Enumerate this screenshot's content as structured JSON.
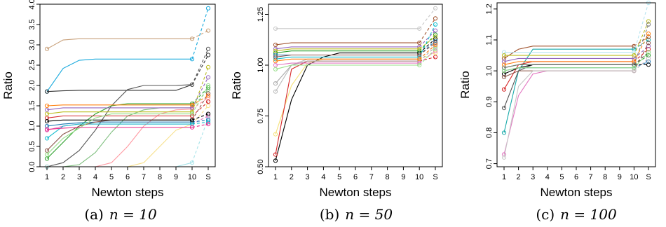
{
  "colors": {
    "axis": "#000000",
    "palette": [
      "#e41a1c",
      "#377eb8",
      "#4daf4a",
      "#984ea3",
      "#ff7f00",
      "#a65628",
      "#f781bf",
      "#999999",
      "#1b9e77",
      "#d95f02",
      "#7570b3",
      "#e7298a",
      "#66a61e",
      "#e6ab02",
      "#17becf",
      "#bcbd22",
      "#8c564b",
      "#000000",
      "#555555",
      "#1f78b4",
      "#33a02c",
      "#fb9a99",
      "#fdbf6f",
      "#cab2d6"
    ]
  },
  "chart_data": [
    {
      "type": "line",
      "caption_prefix": "(a)",
      "caption_math": "n = 10",
      "xlabel": "Newton steps",
      "ylabel": "Ratio",
      "x_ticks": [
        "1",
        "2",
        "3",
        "4",
        "5",
        "6",
        "7",
        "8",
        "9",
        "10",
        "S"
      ],
      "y_ticks": [
        "0.0",
        "0.5",
        "1.0",
        "1.5",
        "2.0",
        "2.5",
        "3.0",
        "3.5",
        "4.0"
      ],
      "ylim": [
        0,
        4
      ],
      "grid": false,
      "legend": "none",
      "series": [
        {
          "color": "#c8a07a",
          "steps": [
            2.9,
            3.12,
            3.15,
            3.15,
            3.15,
            3.15,
            3.15,
            3.15,
            3.15,
            3.15
          ],
          "s": 3.35
        },
        {
          "color": "#17a9dd",
          "steps": [
            1.85,
            2.42,
            2.62,
            2.65,
            2.65,
            2.65,
            2.65,
            2.65,
            2.65,
            2.65
          ],
          "s": 3.9
        },
        {
          "color": "#333333",
          "steps": [
            1.85,
            1.87,
            1.88,
            1.88,
            1.88,
            1.88,
            1.88,
            1.88,
            1.88,
            2.02
          ],
          "s": 2.75
        },
        {
          "color": "#555555",
          "steps": [
            0.0,
            0.1,
            0.4,
            0.9,
            1.5,
            1.9,
            2.0,
            2.0,
            2.0,
            2.02
          ],
          "s": 2.9
        },
        {
          "color": "#2ca02c",
          "steps": [
            0.2,
            0.6,
            1.0,
            1.3,
            1.5,
            1.55,
            1.55,
            1.55,
            1.55,
            1.55
          ],
          "s": 1.95
        },
        {
          "color": "#7fbf7f",
          "steps": [
            0.0,
            0.0,
            0.05,
            0.35,
            0.85,
            1.25,
            1.4,
            1.45,
            1.45,
            1.45
          ],
          "s": 1.9
        },
        {
          "color": "#ff9aa2",
          "steps": [
            0.0,
            0.0,
            0.0,
            0.0,
            0.1,
            0.5,
            1.0,
            1.3,
            1.4,
            1.42
          ],
          "s": 1.7
        },
        {
          "color": "#f7e08a",
          "steps": [
            0.0,
            0.0,
            0.0,
            0.0,
            0.0,
            0.0,
            0.1,
            0.5,
            0.9,
            1.05
          ],
          "s": 1.5
        },
        {
          "color": "#a6e3e9",
          "steps": [
            0.0,
            0.0,
            0.0,
            0.0,
            0.0,
            0.0,
            0.0,
            0.0,
            0.0,
            0.1
          ],
          "s": 1.2
        },
        {
          "color": "#e377c2",
          "steps": [
            0.9,
            1.0,
            1.05,
            1.05,
            1.05,
            1.05,
            1.05,
            1.05,
            1.05,
            1.05
          ],
          "s": 1.25
        },
        {
          "color": "#d62728",
          "steps": [
            1.2,
            1.25,
            1.25,
            1.25,
            1.25,
            1.25,
            1.25,
            1.25,
            1.25,
            1.25
          ],
          "s": 1.6
        },
        {
          "color": "#1f77b4",
          "steps": [
            1.0,
            1.05,
            1.08,
            1.1,
            1.1,
            1.1,
            1.1,
            1.1,
            1.1,
            1.1
          ],
          "s": 1.15
        },
        {
          "color": "#17becf",
          "steps": [
            0.7,
            1.0,
            1.05,
            1.05,
            1.05,
            1.05,
            1.05,
            1.05,
            1.05,
            1.05
          ],
          "s": 1.1
        },
        {
          "color": "#8c564b",
          "steps": [
            0.4,
            0.8,
            1.0,
            1.1,
            1.15,
            1.15,
            1.15,
            1.15,
            1.15,
            1.15
          ],
          "s": 1.8
        },
        {
          "color": "#9467bd",
          "steps": [
            1.4,
            1.45,
            1.45,
            1.45,
            1.45,
            1.45,
            1.45,
            1.45,
            1.45,
            1.45
          ],
          "s": 2.2
        },
        {
          "color": "#bcbd22",
          "steps": [
            1.3,
            1.35,
            1.35,
            1.35,
            1.35,
            1.35,
            1.35,
            1.35,
            1.35,
            1.35
          ],
          "s": 2.45
        },
        {
          "color": "#000000",
          "steps": [
            1.12,
            1.15,
            1.15,
            1.15,
            1.15,
            1.15,
            1.15,
            1.15,
            1.15,
            1.15
          ],
          "s": 1.3
        },
        {
          "color": "#98df8a",
          "steps": [
            0.3,
            0.7,
            0.95,
            1.2,
            1.3,
            1.3,
            1.3,
            1.3,
            1.3,
            1.3
          ],
          "s": 2.0
        },
        {
          "color": "#ff7f0e",
          "steps": [
            1.5,
            1.52,
            1.52,
            1.52,
            1.52,
            1.52,
            1.52,
            1.52,
            1.52,
            1.52
          ],
          "s": 1.75
        },
        {
          "color": "#e7298a",
          "steps": [
            0.92,
            0.95,
            0.97,
            0.97,
            0.97,
            0.97,
            0.97,
            0.97,
            0.97,
            0.97
          ],
          "s": 1.05
        }
      ]
    },
    {
      "type": "line",
      "caption_prefix": "(b)",
      "caption_math": "n = 50",
      "xlabel": "Newton steps",
      "ylabel": "Ratio",
      "x_ticks": [
        "1",
        "2",
        "3",
        "4",
        "5",
        "6",
        "7",
        "8",
        "9",
        "10",
        "S"
      ],
      "y_ticks": [
        "0.50",
        "0.75",
        "1.00",
        "1.25"
      ],
      "ylim": [
        0.5,
        1.3
      ],
      "grid": false,
      "legend": "none",
      "series": [
        {
          "color": "#000000",
          "steps": [
            0.53,
            0.83,
            1.0,
            1.04,
            1.06,
            1.06,
            1.06,
            1.06,
            1.06,
            1.06
          ],
          "s": 1.13
        },
        {
          "color": "#f5e27a",
          "steps": [
            0.66,
            0.9,
            1.01,
            1.03,
            1.03,
            1.03,
            1.03,
            1.03,
            1.03,
            1.03
          ],
          "s": 1.06
        },
        {
          "color": "#d62728",
          "steps": [
            0.56,
            0.98,
            1.02,
            1.02,
            1.02,
            1.02,
            1.02,
            1.02,
            1.02,
            1.02
          ],
          "s": 1.04
        },
        {
          "color": "#c7c7c7",
          "steps": [
            1.18,
            1.18,
            1.18,
            1.18,
            1.18,
            1.18,
            1.18,
            1.18,
            1.18,
            1.18
          ],
          "s": 1.28
        },
        {
          "color": "#bbbbbb",
          "steps": [
            0.87,
            1.0,
            1.03,
            1.03,
            1.03,
            1.03,
            1.03,
            1.03,
            1.03,
            1.03
          ],
          "s": 1.1
        },
        {
          "color": "#aaaaaa",
          "steps": [
            0.91,
            1.0,
            1.02,
            1.02,
            1.02,
            1.02,
            1.02,
            1.02,
            1.02,
            1.02
          ],
          "s": 1.09
        },
        {
          "color": "#a0522d",
          "steps": [
            1.1,
            1.11,
            1.11,
            1.11,
            1.11,
            1.11,
            1.11,
            1.11,
            1.11,
            1.11
          ],
          "s": 1.23
        },
        {
          "color": "#9467bd",
          "steps": [
            1.08,
            1.09,
            1.09,
            1.09,
            1.09,
            1.09,
            1.09,
            1.09,
            1.09,
            1.09
          ],
          "s": 1.17
        },
        {
          "color": "#2ca02c",
          "steps": [
            1.06,
            1.07,
            1.07,
            1.07,
            1.07,
            1.07,
            1.07,
            1.07,
            1.07,
            1.07
          ],
          "s": 1.15
        },
        {
          "color": "#1f77b4",
          "steps": [
            1.05,
            1.05,
            1.05,
            1.05,
            1.05,
            1.05,
            1.05,
            1.05,
            1.05,
            1.05
          ],
          "s": 1.12
        },
        {
          "color": "#17becf",
          "steps": [
            1.03,
            1.04,
            1.04,
            1.04,
            1.04,
            1.04,
            1.04,
            1.04,
            1.04,
            1.04
          ],
          "s": 1.2
        },
        {
          "color": "#ff7f0e",
          "steps": [
            1.02,
            1.03,
            1.03,
            1.03,
            1.03,
            1.03,
            1.03,
            1.03,
            1.03,
            1.03
          ],
          "s": 1.1
        },
        {
          "color": "#e377c2",
          "steps": [
            1.0,
            1.01,
            1.01,
            1.01,
            1.01,
            1.01,
            1.01,
            1.01,
            1.01,
            1.01
          ],
          "s": 1.07
        },
        {
          "color": "#bcbd22",
          "steps": [
            1.07,
            1.08,
            1.08,
            1.08,
            1.08,
            1.08,
            1.08,
            1.08,
            1.08,
            1.08
          ],
          "s": 1.14
        },
        {
          "color": "#8c564b",
          "steps": [
            1.04,
            1.05,
            1.05,
            1.05,
            1.05,
            1.05,
            1.05,
            1.05,
            1.05,
            1.05
          ],
          "s": 1.11
        },
        {
          "color": "#98df8a",
          "steps": [
            0.98,
            1.0,
            1.0,
            1.0,
            1.0,
            1.0,
            1.0,
            1.0,
            1.0,
            1.0
          ],
          "s": 1.08
        }
      ]
    },
    {
      "type": "line",
      "caption_prefix": "(c)",
      "caption_math": "n = 100",
      "xlabel": "Newton steps",
      "ylabel": "Ratio",
      "x_ticks": [
        "1",
        "2",
        "3",
        "4",
        "5",
        "6",
        "7",
        "8",
        "9",
        "10",
        "S"
      ],
      "y_ticks": [
        "0.7",
        "0.8",
        "0.9",
        "1.0",
        "1.1",
        "1.2"
      ],
      "ylim": [
        0.69,
        1.22
      ],
      "grid": false,
      "legend": "none",
      "series": [
        {
          "color": "#e377c2",
          "steps": [
            0.73,
            0.92,
            0.99,
            1.0,
            1.0,
            1.0,
            1.0,
            1.0,
            1.0,
            1.0
          ],
          "s": 1.04
        },
        {
          "color": "#17a9a9",
          "steps": [
            0.8,
            1.0,
            1.07,
            1.07,
            1.07,
            1.07,
            1.07,
            1.07,
            1.07,
            1.07
          ],
          "s": 1.1
        },
        {
          "color": "#555555",
          "steps": [
            0.88,
            1.0,
            1.02,
            1.02,
            1.02,
            1.02,
            1.02,
            1.02,
            1.02,
            1.02
          ],
          "s": 1.06
        },
        {
          "color": "#d62728",
          "steps": [
            0.94,
            1.02,
            1.03,
            1.03,
            1.03,
            1.03,
            1.03,
            1.03,
            1.03,
            1.03
          ],
          "s": 1.07
        },
        {
          "color": "#a0522d",
          "steps": [
            1.04,
            1.07,
            1.08,
            1.08,
            1.08,
            1.08,
            1.08,
            1.08,
            1.08,
            1.08
          ],
          "s": 1.11
        },
        {
          "color": "#b8e5f0",
          "steps": [
            1.06,
            1.06,
            1.06,
            1.06,
            1.06,
            1.06,
            1.06,
            1.06,
            1.06,
            1.06
          ],
          "s": 1.22
        },
        {
          "color": "#9467bd",
          "steps": [
            1.03,
            1.04,
            1.04,
            1.04,
            1.04,
            1.04,
            1.04,
            1.04,
            1.04,
            1.04
          ],
          "s": 1.08
        },
        {
          "color": "#2ca02c",
          "steps": [
            1.01,
            1.02,
            1.02,
            1.02,
            1.02,
            1.02,
            1.02,
            1.02,
            1.02,
            1.02
          ],
          "s": 1.05
        },
        {
          "color": "#1f77b4",
          "steps": [
            1.0,
            1.01,
            1.01,
            1.01,
            1.01,
            1.01,
            1.01,
            1.01,
            1.01,
            1.01
          ],
          "s": 1.03
        },
        {
          "color": "#000000",
          "steps": [
            0.99,
            1.01,
            1.02,
            1.02,
            1.02,
            1.02,
            1.02,
            1.02,
            1.02,
            1.02
          ],
          "s": 1.02
        },
        {
          "color": "#ff7f0e",
          "steps": [
            1.02,
            1.03,
            1.03,
            1.03,
            1.03,
            1.03,
            1.03,
            1.03,
            1.03,
            1.03
          ],
          "s": 1.12
        },
        {
          "color": "#bcbd22",
          "steps": [
            1.05,
            1.05,
            1.05,
            1.05,
            1.05,
            1.05,
            1.05,
            1.05,
            1.05,
            1.05
          ],
          "s": 1.16
        },
        {
          "color": "#8c564b",
          "steps": [
            0.98,
            1.0,
            1.0,
            1.0,
            1.0,
            1.0,
            1.0,
            1.0,
            1.0,
            1.0
          ],
          "s": 1.09
        },
        {
          "color": "#c7c7c7",
          "steps": [
            0.72,
            0.95,
            1.0,
            1.0,
            1.0,
            1.0,
            1.0,
            1.0,
            1.0,
            1.0
          ],
          "s": 1.04
        },
        {
          "color": "#7f7f7f",
          "steps": [
            1.01,
            1.02,
            1.02,
            1.02,
            1.02,
            1.02,
            1.02,
            1.02,
            1.02,
            1.02
          ],
          "s": 1.15
        },
        {
          "color": "#98df8a",
          "steps": [
            1.0,
            1.01,
            1.01,
            1.01,
            1.01,
            1.01,
            1.01,
            1.01,
            1.01,
            1.01
          ],
          "s": 1.06
        }
      ]
    }
  ]
}
